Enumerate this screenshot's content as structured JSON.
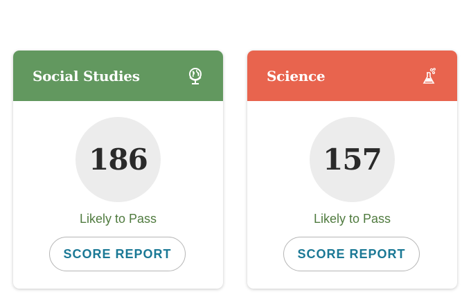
{
  "cards": [
    {
      "title": "Social Studies",
      "icon": "globe-icon",
      "score": "186",
      "status": "Likely to Pass",
      "button": "SCORE REPORT",
      "color": "#62985f"
    },
    {
      "title": "Science",
      "icon": "flask-icon",
      "score": "157",
      "status": "Likely to Pass",
      "button": "SCORE REPORT",
      "color": "#e8644e"
    }
  ]
}
